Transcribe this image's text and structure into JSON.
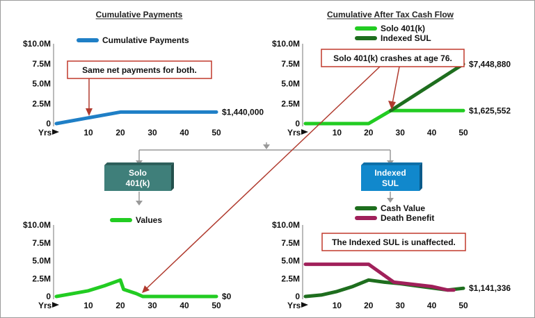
{
  "colors": {
    "payments": "#1f7fc6",
    "solo_401k": "#22cc22",
    "indexed_sul": "#1e6e1e",
    "cash_value": "#1e6e1e",
    "death_benefit": "#a0205a",
    "solo_box": "#3f7f7a",
    "sul_box": "#1188cc",
    "annotation_border": "#c0392b",
    "arrow": "#b03a2e",
    "connector": "#999999"
  },
  "flow": {
    "solo_box_label_1": "Solo",
    "solo_box_label_2": "401(k)",
    "sul_box_label_1": "Indexed",
    "sul_box_label_2": "SUL"
  },
  "annotations": {
    "same_payments": "Same net payments for both.",
    "crash": "Solo 401(k) crashes at age 76.",
    "unaffected": "The Indexed SUL is unaffected."
  },
  "chart_data": [
    {
      "type": "line",
      "title": "Cumulative Payments",
      "xlabel": "Yrs",
      "ylabel": "",
      "x_ticks": [
        "Yrs",
        "10",
        "20",
        "30",
        "40",
        "50"
      ],
      "y_ticks": [
        "$10.0M",
        "7.5M",
        "5.0M",
        "2.5M",
        "0"
      ],
      "xlim": [
        0,
        50
      ],
      "ylim": [
        0,
        10000000
      ],
      "legend_placement": "top",
      "series": [
        {
          "name": "Cumulative Payments",
          "color": "#1f7fc6",
          "x": [
            0,
            20,
            50
          ],
          "y": [
            0,
            1440000,
            1440000
          ],
          "end_label": "$1,440,000"
        }
      ]
    },
    {
      "type": "line",
      "title": "Cumulative After Tax Cash Flow",
      "xlabel": "Yrs",
      "ylabel": "",
      "x_ticks": [
        "Yrs",
        "10",
        "20",
        "30",
        "40",
        "50"
      ],
      "y_ticks": [
        "$10.0M",
        "7.5M",
        "5.0M",
        "2.5M",
        "0"
      ],
      "xlim": [
        0,
        50
      ],
      "ylim": [
        0,
        10000000
      ],
      "legend_placement": "top",
      "series": [
        {
          "name": "Solo 401(k)",
          "color": "#22cc22",
          "x": [
            0,
            20,
            27,
            50
          ],
          "y": [
            0,
            0,
            1625552,
            1625552
          ],
          "end_label": "$1,625,552"
        },
        {
          "name": "Indexed SUL",
          "color": "#1e6e1e",
          "x": [
            27,
            50
          ],
          "y": [
            1625552,
            7448880
          ],
          "end_label": "$7,448,880"
        }
      ]
    },
    {
      "type": "line",
      "title": "",
      "xlabel": "Yrs",
      "ylabel": "",
      "x_ticks": [
        "Yrs",
        "10",
        "20",
        "30",
        "40",
        "50"
      ],
      "y_ticks": [
        "$10.0M",
        "7.5M",
        "5.0M",
        "2.5M",
        "0"
      ],
      "xlim": [
        0,
        50
      ],
      "ylim": [
        0,
        10000000
      ],
      "legend_placement": "top",
      "series": [
        {
          "name": "Values",
          "color": "#22cc22",
          "x": [
            0,
            5,
            10,
            15,
            20,
            21,
            25,
            27,
            50
          ],
          "y": [
            0,
            400000,
            800000,
            1500000,
            2300000,
            1000000,
            400000,
            0,
            0
          ],
          "end_label": "$0"
        }
      ]
    },
    {
      "type": "line",
      "title": "",
      "xlabel": "Yrs",
      "ylabel": "",
      "x_ticks": [
        "Yrs",
        "10",
        "20",
        "30",
        "40",
        "50"
      ],
      "y_ticks": [
        "$10.0M",
        "7.5M",
        "5.0M",
        "2.5M",
        "0"
      ],
      "xlim": [
        0,
        50
      ],
      "ylim": [
        0,
        10000000
      ],
      "legend_placement": "top",
      "series": [
        {
          "name": "Cash Value",
          "color": "#1e6e1e",
          "x": [
            0,
            5,
            10,
            15,
            20,
            25,
            30,
            35,
            40,
            45,
            50
          ],
          "y": [
            0,
            200000,
            700000,
            1400000,
            2300000,
            2000000,
            1800000,
            1500000,
            1200000,
            900000,
            1141336
          ],
          "end_label": "$1,141,336"
        },
        {
          "name": "Death Benefit",
          "color": "#a0205a",
          "x": [
            0,
            20,
            28,
            40,
            45,
            47
          ],
          "y": [
            4500000,
            4500000,
            2000000,
            1400000,
            900000,
            900000
          ],
          "end_label": ""
        }
      ]
    }
  ]
}
